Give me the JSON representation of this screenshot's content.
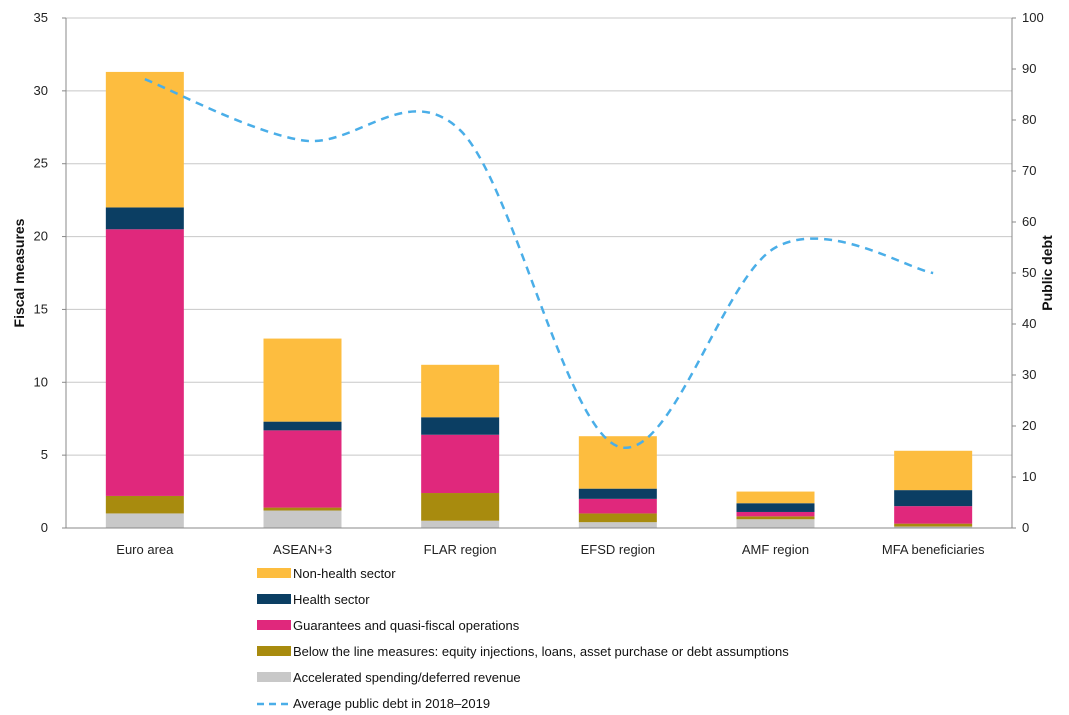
{
  "chart_data": {
    "type": "bar",
    "stacked": true,
    "categories": [
      "Euro area",
      "ASEAN+3",
      "FLAR region",
      "EFSD region",
      "AMF region",
      "MFA beneficiaries"
    ],
    "series": [
      {
        "name": "Accelerated spending/deferred revenue",
        "color": "#c8c8c8",
        "values": [
          1.0,
          1.2,
          0.5,
          0.4,
          0.6,
          0.1
        ]
      },
      {
        "name": "Below the line measures: equity injections, loans, asset purchase or debt assumptions",
        "color": "#a88b0e",
        "values": [
          1.2,
          0.2,
          1.9,
          0.6,
          0.2,
          0.2
        ]
      },
      {
        "name": "Guarantees and quasi-fiscal operations",
        "color": "#e0287c",
        "values": [
          18.3,
          5.3,
          4.0,
          1.0,
          0.3,
          1.2
        ]
      },
      {
        "name": "Health sector",
        "color": "#0b3e63",
        "values": [
          1.5,
          0.6,
          1.2,
          0.7,
          0.6,
          1.1
        ]
      },
      {
        "name": "Non-health sector",
        "color": "#fdbd3f",
        "values": [
          9.3,
          5.7,
          3.6,
          3.6,
          0.8,
          2.7
        ]
      }
    ],
    "line": {
      "name": "Average public debt in 2018–2019",
      "color": "#4aaee8",
      "axis": "right",
      "values": [
        88,
        76,
        78,
        16,
        55,
        50
      ]
    },
    "ylabel": "Fiscal measures",
    "ylim": [
      0,
      35
    ],
    "yticks": [
      0,
      5,
      10,
      15,
      20,
      25,
      30,
      35
    ],
    "y2label": "Public debt",
    "y2lim": [
      0,
      100
    ],
    "y2ticks": [
      0,
      10,
      20,
      30,
      40,
      50,
      60,
      70,
      80,
      90,
      100
    ],
    "grid": true,
    "legend": "bottom",
    "legend_order": [
      "Non-health sector",
      "Health sector",
      "Guarantees and quasi-fiscal operations",
      "Below the line measures: equity injections, loans, asset purchase or debt assumptions",
      "Accelerated spending/deferred revenue",
      "Average public debt in 2018–2019"
    ]
  }
}
